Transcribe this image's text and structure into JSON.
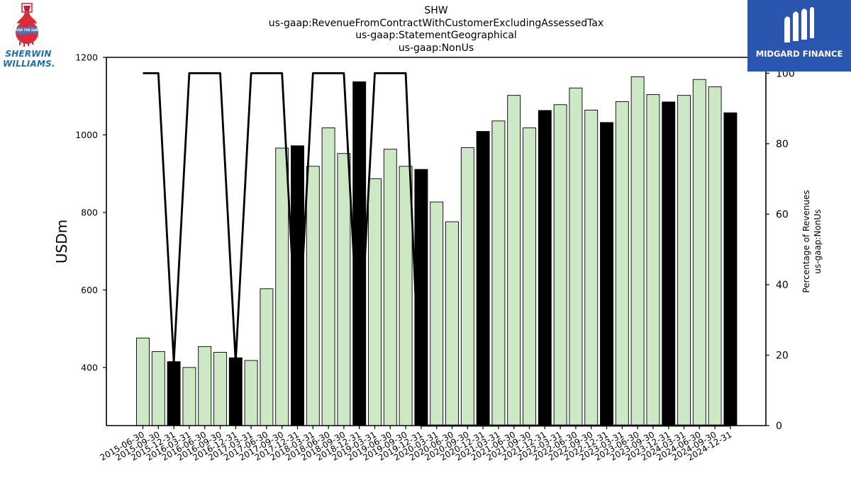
{
  "title_lines": [
    "SHW",
    "us-gaap:RevenueFromContractWithCustomerExcludingAssessedTax",
    "us-gaap:StatementGeographical",
    "us-gaap:NonUs"
  ],
  "logos": {
    "left": {
      "line1": "SHERWIN",
      "line2": "WILLIAMS.",
      "badge": "COVER THE EARTH"
    },
    "right": {
      "text": "MIDGARD FINANCE"
    }
  },
  "colors": {
    "bar_light": "#cde8c5",
    "bar_dark": "#000000",
    "bar_edge": "#000000",
    "line": "#000000",
    "logo_bg": "#2a56b0"
  },
  "chart_data": {
    "type": "bar",
    "title": "SHW us-gaap:RevenueFromContractWithCustomerExcludingAssessedTax us-gaap:StatementGeographical us-gaap:NonUs",
    "ylabel": "USDm",
    "y2label": [
      "Percentage of Revenues",
      "us-gaap:NonUs"
    ],
    "ylim": [
      250,
      1200
    ],
    "y2lim": [
      0,
      104.5
    ],
    "yticks": [
      400,
      600,
      800,
      1000,
      1200
    ],
    "y2ticks": [
      0,
      20,
      40,
      60,
      80,
      100
    ],
    "categories": [
      "2015-06-30",
      "2015-09-30",
      "2015-12-31",
      "2016-03-31",
      "2016-06-30",
      "2016-09-30",
      "2016-12-31",
      "2017-03-31",
      "2017-06-30",
      "2017-09-30",
      "2017-12-31",
      "2018-03-31",
      "2018-06-30",
      "2018-09-30",
      "2018-12-31",
      "2019-03-31",
      "2019-06-30",
      "2019-09-30",
      "2019-12-31",
      "2020-03-31",
      "2020-06-30",
      "2020-09-30",
      "2020-12-31",
      "2021-03-31",
      "2021-06-30",
      "2021-09-30",
      "2021-12-31",
      "2022-03-31",
      "2022-06-30",
      "2022-09-30",
      "2022-12-31",
      "2023-03-31",
      "2023-06-30",
      "2023-09-30",
      "2023-12-31",
      "2024-03-31",
      "2024-06-30",
      "2024-09-30",
      "2024-12-31"
    ],
    "series": [
      {
        "values": [
          476,
          441,
          415,
          400,
          454,
          439,
          425,
          418,
          603,
          966,
          972,
          919,
          1018,
          952,
          1137,
          887,
          963,
          919,
          911,
          827,
          776,
          967,
          1009,
          1036,
          1102,
          1018,
          1063,
          1078,
          1121,
          1064,
          1032,
          1086,
          1150,
          1104,
          1085,
          1102,
          1143,
          1124,
          1057
        ],
        "dark": [
          false,
          false,
          true,
          false,
          false,
          false,
          true,
          false,
          false,
          false,
          true,
          false,
          false,
          false,
          true,
          false,
          false,
          false,
          true,
          false,
          false,
          false,
          true,
          false,
          false,
          false,
          true,
          false,
          false,
          false,
          true,
          false,
          false,
          false,
          true,
          false,
          false,
          false,
          true
        ]
      },
      {
        "axis": "right",
        "values": [
          100,
          100,
          18,
          100,
          100,
          100,
          18,
          100,
          100,
          100,
          18,
          100,
          100,
          100,
          18,
          100,
          100,
          100,
          0,
          0,
          0,
          0,
          0,
          0,
          0,
          0,
          0,
          0,
          0,
          0,
          0,
          0,
          0,
          0,
          0,
          0,
          0,
          0,
          0
        ]
      }
    ],
    "grid": false
  }
}
